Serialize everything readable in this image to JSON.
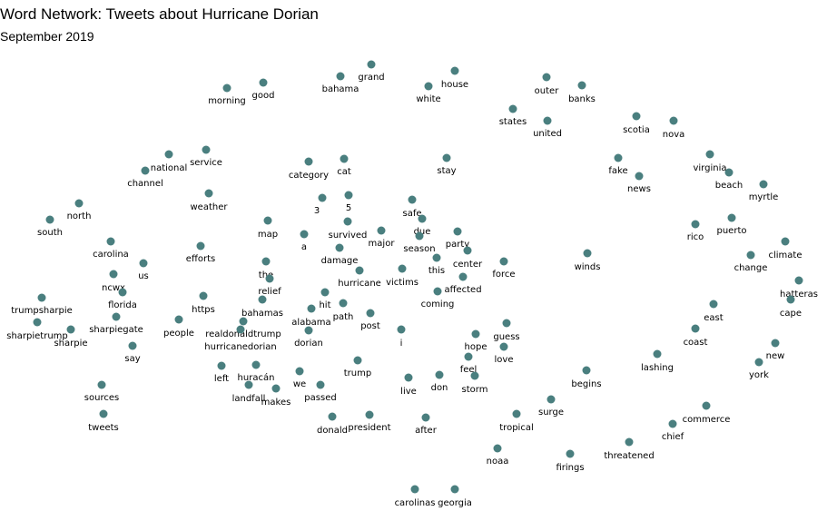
{
  "header": {
    "title": "Word Network: Tweets about Hurricane Dorian",
    "subtitle": "September 2019"
  },
  "style": {
    "node_color": "#4a7f7f",
    "background": "#ffffff"
  },
  "nodes": [
    {
      "word": "grand"
    },
    {
      "word": "bahama"
    },
    {
      "word": "house"
    },
    {
      "word": "white"
    },
    {
      "word": "outer"
    },
    {
      "word": "banks"
    },
    {
      "word": "morning"
    },
    {
      "word": "good"
    },
    {
      "word": "states"
    },
    {
      "word": "united"
    },
    {
      "word": "scotia"
    },
    {
      "word": "nova"
    },
    {
      "word": "service"
    },
    {
      "word": "national"
    },
    {
      "word": "channel"
    },
    {
      "word": "category"
    },
    {
      "word": "cat"
    },
    {
      "word": "stay"
    },
    {
      "word": "fake"
    },
    {
      "word": "news"
    },
    {
      "word": "virginia"
    },
    {
      "word": "beach"
    },
    {
      "word": "myrtle"
    },
    {
      "word": "weather"
    },
    {
      "word": "3"
    },
    {
      "word": "5"
    },
    {
      "word": "safe"
    },
    {
      "word": "north"
    },
    {
      "word": "south"
    },
    {
      "word": "map"
    },
    {
      "word": "survived"
    },
    {
      "word": "due"
    },
    {
      "word": "puerto"
    },
    {
      "word": "rico"
    },
    {
      "word": "a"
    },
    {
      "word": "major"
    },
    {
      "word": "season"
    },
    {
      "word": "party"
    },
    {
      "word": "carolina"
    },
    {
      "word": "efforts"
    },
    {
      "word": "damage"
    },
    {
      "word": "center"
    },
    {
      "word": "climate"
    },
    {
      "word": "us"
    },
    {
      "word": "the"
    },
    {
      "word": "winds"
    },
    {
      "word": "force"
    },
    {
      "word": "change"
    },
    {
      "word": "this"
    },
    {
      "word": "ncwx"
    },
    {
      "word": "victims"
    },
    {
      "word": "relief"
    },
    {
      "word": "hurricane"
    },
    {
      "word": "affected"
    },
    {
      "word": "hatteras"
    },
    {
      "word": "florida"
    },
    {
      "word": "trumpsharpie"
    },
    {
      "word": "hit"
    },
    {
      "word": "https"
    },
    {
      "word": "coming"
    },
    {
      "word": "bahamas"
    },
    {
      "word": "cape"
    },
    {
      "word": "path"
    },
    {
      "word": "alabama"
    },
    {
      "word": "east"
    },
    {
      "word": "sharpiegate"
    },
    {
      "word": "post"
    },
    {
      "word": "sharpietrump"
    },
    {
      "word": "people"
    },
    {
      "word": "realdonaldtrump"
    },
    {
      "word": "guess"
    },
    {
      "word": "sharpie"
    },
    {
      "word": "coast"
    },
    {
      "word": "i"
    },
    {
      "word": "dorian"
    },
    {
      "word": "hurricanedorian"
    },
    {
      "word": "hope"
    },
    {
      "word": "new"
    },
    {
      "word": "say"
    },
    {
      "word": "love"
    },
    {
      "word": "lashing"
    },
    {
      "word": "trump"
    },
    {
      "word": "feel"
    },
    {
      "word": "york"
    },
    {
      "word": "huracán"
    },
    {
      "word": "left"
    },
    {
      "word": "we"
    },
    {
      "word": "begins"
    },
    {
      "word": "live"
    },
    {
      "word": "don"
    },
    {
      "word": "storm"
    },
    {
      "word": "sources"
    },
    {
      "word": "landfall"
    },
    {
      "word": "makes"
    },
    {
      "word": "passed"
    },
    {
      "word": "surge"
    },
    {
      "word": "commerce"
    },
    {
      "word": "tweets"
    },
    {
      "word": "donald"
    },
    {
      "word": "president"
    },
    {
      "word": "after"
    },
    {
      "word": "tropical"
    },
    {
      "word": "chief"
    },
    {
      "word": "threatened"
    },
    {
      "word": "noaa"
    },
    {
      "word": "firings"
    },
    {
      "word": "carolinas"
    },
    {
      "word": "georgia"
    }
  ]
}
